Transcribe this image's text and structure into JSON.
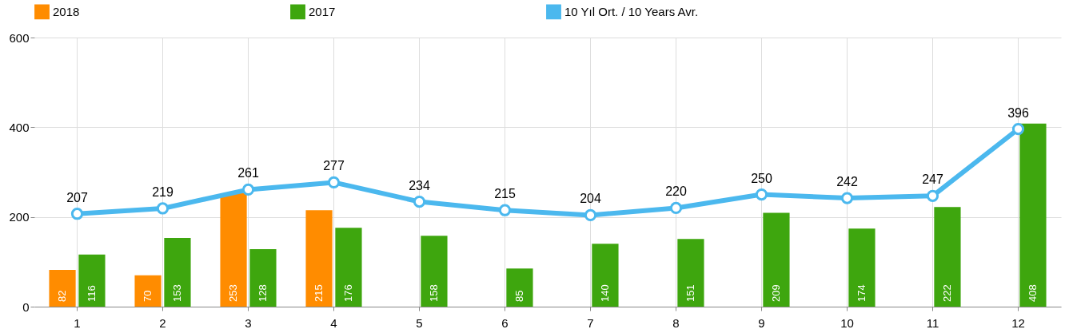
{
  "chart_data": {
    "type": "bar",
    "categories": [
      "1",
      "2",
      "3",
      "4",
      "5",
      "6",
      "7",
      "8",
      "9",
      "10",
      "11",
      "12"
    ],
    "series": [
      {
        "name": "2018",
        "color": "#ff8c00",
        "values": [
          82,
          70,
          253,
          215,
          null,
          null,
          null,
          null,
          null,
          null,
          null,
          null
        ]
      },
      {
        "name": "2017",
        "color": "#3ea60e",
        "values": [
          116,
          153,
          128,
          176,
          158,
          85,
          140,
          151,
          209,
          174,
          222,
          408
        ]
      },
      {
        "name": "10 Yıl Ort. / 10 Years Avr.",
        "type": "line",
        "color": "#4bb8ee",
        "values": [
          207,
          219,
          261,
          277,
          234,
          215,
          204,
          220,
          250,
          242,
          247,
          396
        ]
      }
    ],
    "ylim": [
      0,
      600
    ],
    "yticks": [
      0,
      200,
      400,
      600
    ],
    "grid": true,
    "legend": "top",
    "marker": "circle",
    "line_style": "solid",
    "data_labels": true
  }
}
